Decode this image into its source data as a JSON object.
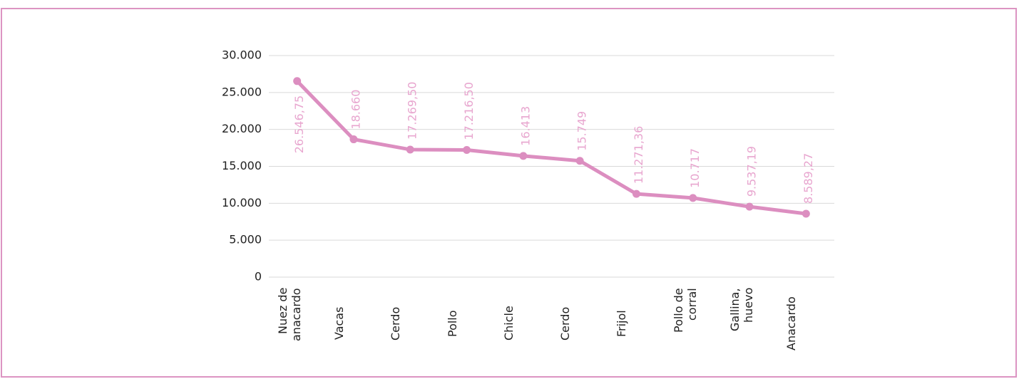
{
  "chart_data": {
    "type": "line",
    "categories": [
      "Nuez de anacardo",
      "Vacas",
      "Cerdo",
      "Pollo",
      "Chicle",
      "Cerdo",
      "Frijol",
      "Pollo de corral",
      "Gallina, huevo",
      "Anacardo"
    ],
    "series": [
      {
        "color": "#dc8ec0",
        "values": [
          26546.75,
          18660,
          17269.5,
          17216.5,
          16413,
          15749,
          11271.36,
          10717,
          9537.19,
          8589.27
        ],
        "value_labels": [
          "26.546,75",
          "18.660",
          "17.269,50",
          "17.216,50",
          "16.413",
          "15.749",
          "11.271,36",
          "10.717",
          "9.537,19",
          "8.589,27"
        ]
      }
    ],
    "ylim": [
      0,
      30000
    ],
    "yticks": [
      0,
      {
        "value": 5000,
        "label": "5.000"
      },
      {
        "value": 10000,
        "label": "10.000"
      },
      {
        "value": 15000,
        "label": "15.000"
      },
      {
        "value": 20000,
        "label": "20.000"
      },
      {
        "value": 25000,
        "label": "25.000"
      },
      {
        "value": 30000,
        "label": "30.000"
      }
    ],
    "grid": true
  }
}
